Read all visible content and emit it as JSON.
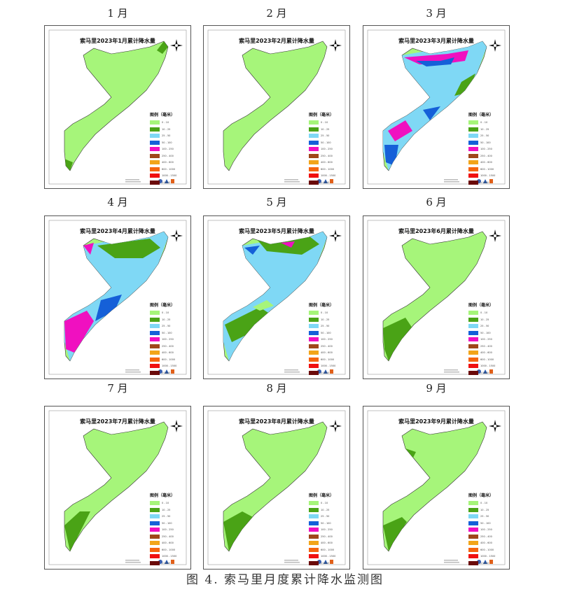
{
  "months": [
    {
      "label": "1 月",
      "title": "索马里2023年1月累计降水量"
    },
    {
      "label": "2 月",
      "title": "索马里2023年2月累计降水量"
    },
    {
      "label": "3 月",
      "title": "索马里2023年3月累计降水量"
    },
    {
      "label": "4 月",
      "title": "索马里2023年4月累计降水量"
    },
    {
      "label": "5 月",
      "title": "索马里2023年5月累计降水量"
    },
    {
      "label": "6 月",
      "title": "索马里2023年6月累计降水量"
    },
    {
      "label": "7 月",
      "title": "索马里2023年7月累计降水量"
    },
    {
      "label": "8 月",
      "title": "索马里2023年8月累计降水量"
    },
    {
      "label": "9 月",
      "title": "索马里2023年9月累计降水量"
    }
  ],
  "legend": {
    "title": "图例（毫米）",
    "classes": [
      {
        "label": "0 - 10",
        "color": "#a6f57a"
      },
      {
        "label": "10 - 25",
        "color": "#4aa316"
      },
      {
        "label": "25 - 50",
        "color": "#7fd8f5"
      },
      {
        "label": "50 - 100",
        "color": "#1560d8"
      },
      {
        "label": "100 - 250",
        "color": "#f010c0"
      },
      {
        "label": "250 - 400",
        "color": "#a0461a"
      },
      {
        "label": "400 - 600",
        "color": "#f2a51a"
      },
      {
        "label": "600 - 1000",
        "color": "#f5650f"
      },
      {
        "label": "1000 - 1500",
        "color": "#f01010"
      },
      {
        "label": ">1500",
        "color": "#6a0a0a"
      }
    ]
  },
  "caption": "图 4.  索马里月度累计降水监测图"
}
